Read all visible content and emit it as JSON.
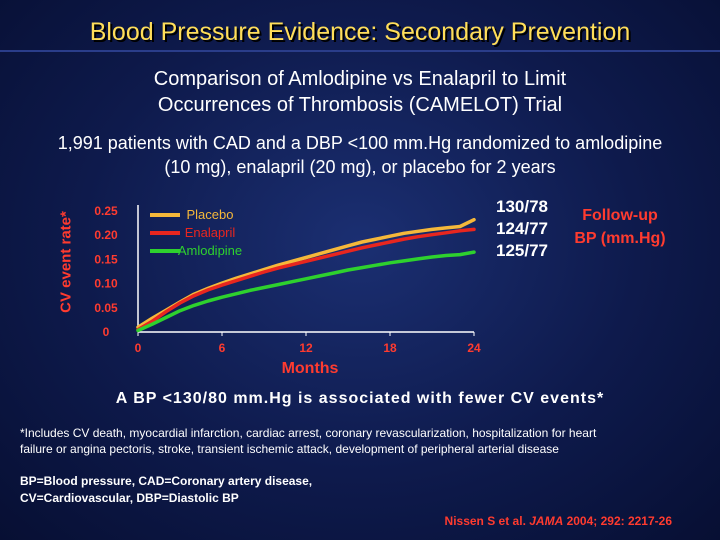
{
  "title": "Blood Pressure Evidence:  Secondary Prevention",
  "subtitle_line1": "Comparison of Amlodipine vs Enalapril to Limit",
  "subtitle_line2": "Occurrences of Thrombosis (CAMELOT) Trial",
  "description_line1": "1,991 patients with CAD and a DBP <100 mm.Hg randomized to amlodipine",
  "description_line2": "(10 mg), enalapril (20 mg), or placebo for 2 years",
  "bp_values": [
    "130/78",
    "124/77",
    "125/77"
  ],
  "followup_label_line1": "Follow-up",
  "followup_label_line2": "BP (mm.Hg)",
  "finding": "A BP <130/80 mm.Hg is associated with fewer CV events*",
  "footnote_line1": "*Includes CV death, myocardial infarction, cardiac arrest, coronary revascularization, hospitalization for heart",
  "footnote_line2": "failure or angina pectoris, stroke, transient ischemic attack, development of peripheral arterial disease",
  "abbreviations_line1": "BP=Blood pressure, CAD=Coronary artery disease,",
  "abbreviations_line2": "CV=Cardiovascular, DBP=Diastolic BP",
  "citation": {
    "authors": "Nissen S et al. ",
    "journal": "JAMA",
    "rest": " 2004; 292: 2217-26"
  },
  "chart_data": {
    "type": "line",
    "title": "",
    "xlabel": "Months",
    "ylabel": "CV event rate*",
    "xlim": [
      0,
      24
    ],
    "ylim": [
      0,
      0.25
    ],
    "x_ticks": [
      "0",
      "6",
      "12",
      "18",
      "24"
    ],
    "y_ticks": [
      "0",
      "0.05",
      "0.10",
      "0.15",
      "0.20",
      "0.25"
    ],
    "series": [
      {
        "name": "Placebo",
        "color": "#f5b83a",
        "x": [
          0,
          1,
          2,
          3,
          4,
          5,
          6,
          7,
          8,
          9,
          10,
          11,
          12,
          13,
          14,
          15,
          16,
          17,
          18,
          19,
          20,
          21,
          22,
          23,
          24
        ],
        "y": [
          0.01,
          0.028,
          0.045,
          0.062,
          0.078,
          0.09,
          0.101,
          0.111,
          0.12,
          0.129,
          0.138,
          0.146,
          0.154,
          0.162,
          0.17,
          0.178,
          0.186,
          0.192,
          0.198,
          0.204,
          0.208,
          0.212,
          0.215,
          0.218,
          0.232
        ]
      },
      {
        "name": "Enalapril",
        "color": "#e8261f",
        "x": [
          0,
          1,
          2,
          3,
          4,
          5,
          6,
          7,
          8,
          9,
          10,
          11,
          12,
          13,
          14,
          15,
          16,
          17,
          18,
          19,
          20,
          21,
          22,
          23,
          24
        ],
        "y": [
          0.005,
          0.022,
          0.042,
          0.06,
          0.075,
          0.087,
          0.097,
          0.106,
          0.115,
          0.124,
          0.132,
          0.139,
          0.146,
          0.153,
          0.16,
          0.167,
          0.174,
          0.18,
          0.186,
          0.192,
          0.197,
          0.201,
          0.205,
          0.209,
          0.212
        ]
      },
      {
        "name": "Amlodipine",
        "color": "#2ed12e",
        "x": [
          0,
          1,
          2,
          3,
          4,
          5,
          6,
          7,
          8,
          9,
          10,
          11,
          12,
          13,
          14,
          15,
          16,
          17,
          18,
          19,
          20,
          21,
          22,
          23,
          24
        ],
        "y": [
          0.003,
          0.016,
          0.03,
          0.044,
          0.055,
          0.064,
          0.072,
          0.079,
          0.086,
          0.092,
          0.098,
          0.104,
          0.11,
          0.116,
          0.122,
          0.128,
          0.133,
          0.138,
          0.143,
          0.147,
          0.151,
          0.155,
          0.158,
          0.16,
          0.165
        ]
      }
    ]
  }
}
